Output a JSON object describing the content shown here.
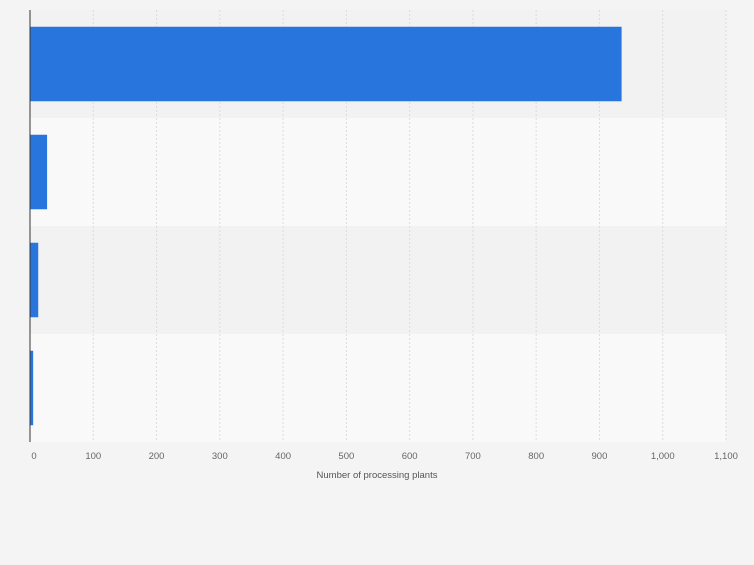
{
  "chart_data": {
    "type": "bar",
    "orientation": "horizontal",
    "categories": [
      "",
      "",
      "",
      ""
    ],
    "values": [
      935,
      27,
      13,
      5
    ],
    "xlabel": "Number of processing plants",
    "ylabel": "",
    "xlim": [
      0,
      1100
    ],
    "xticks": [
      0,
      100,
      200,
      300,
      400,
      500,
      600,
      700,
      800,
      900,
      1000,
      1100
    ],
    "xtick_labels": [
      "0",
      "100",
      "200",
      "300",
      "400",
      "500",
      "600",
      "700",
      "800",
      "900",
      "1,000",
      "1,100"
    ],
    "grid": true,
    "legend": "none",
    "colors": {
      "bar": "#2876dd",
      "background": "#f4f4f4",
      "band_light": "#f9f9f9",
      "band_dark": "#f2f2f2",
      "grid": "#dcdcdc",
      "axis": "#333333",
      "tick_text": "#666666"
    }
  }
}
